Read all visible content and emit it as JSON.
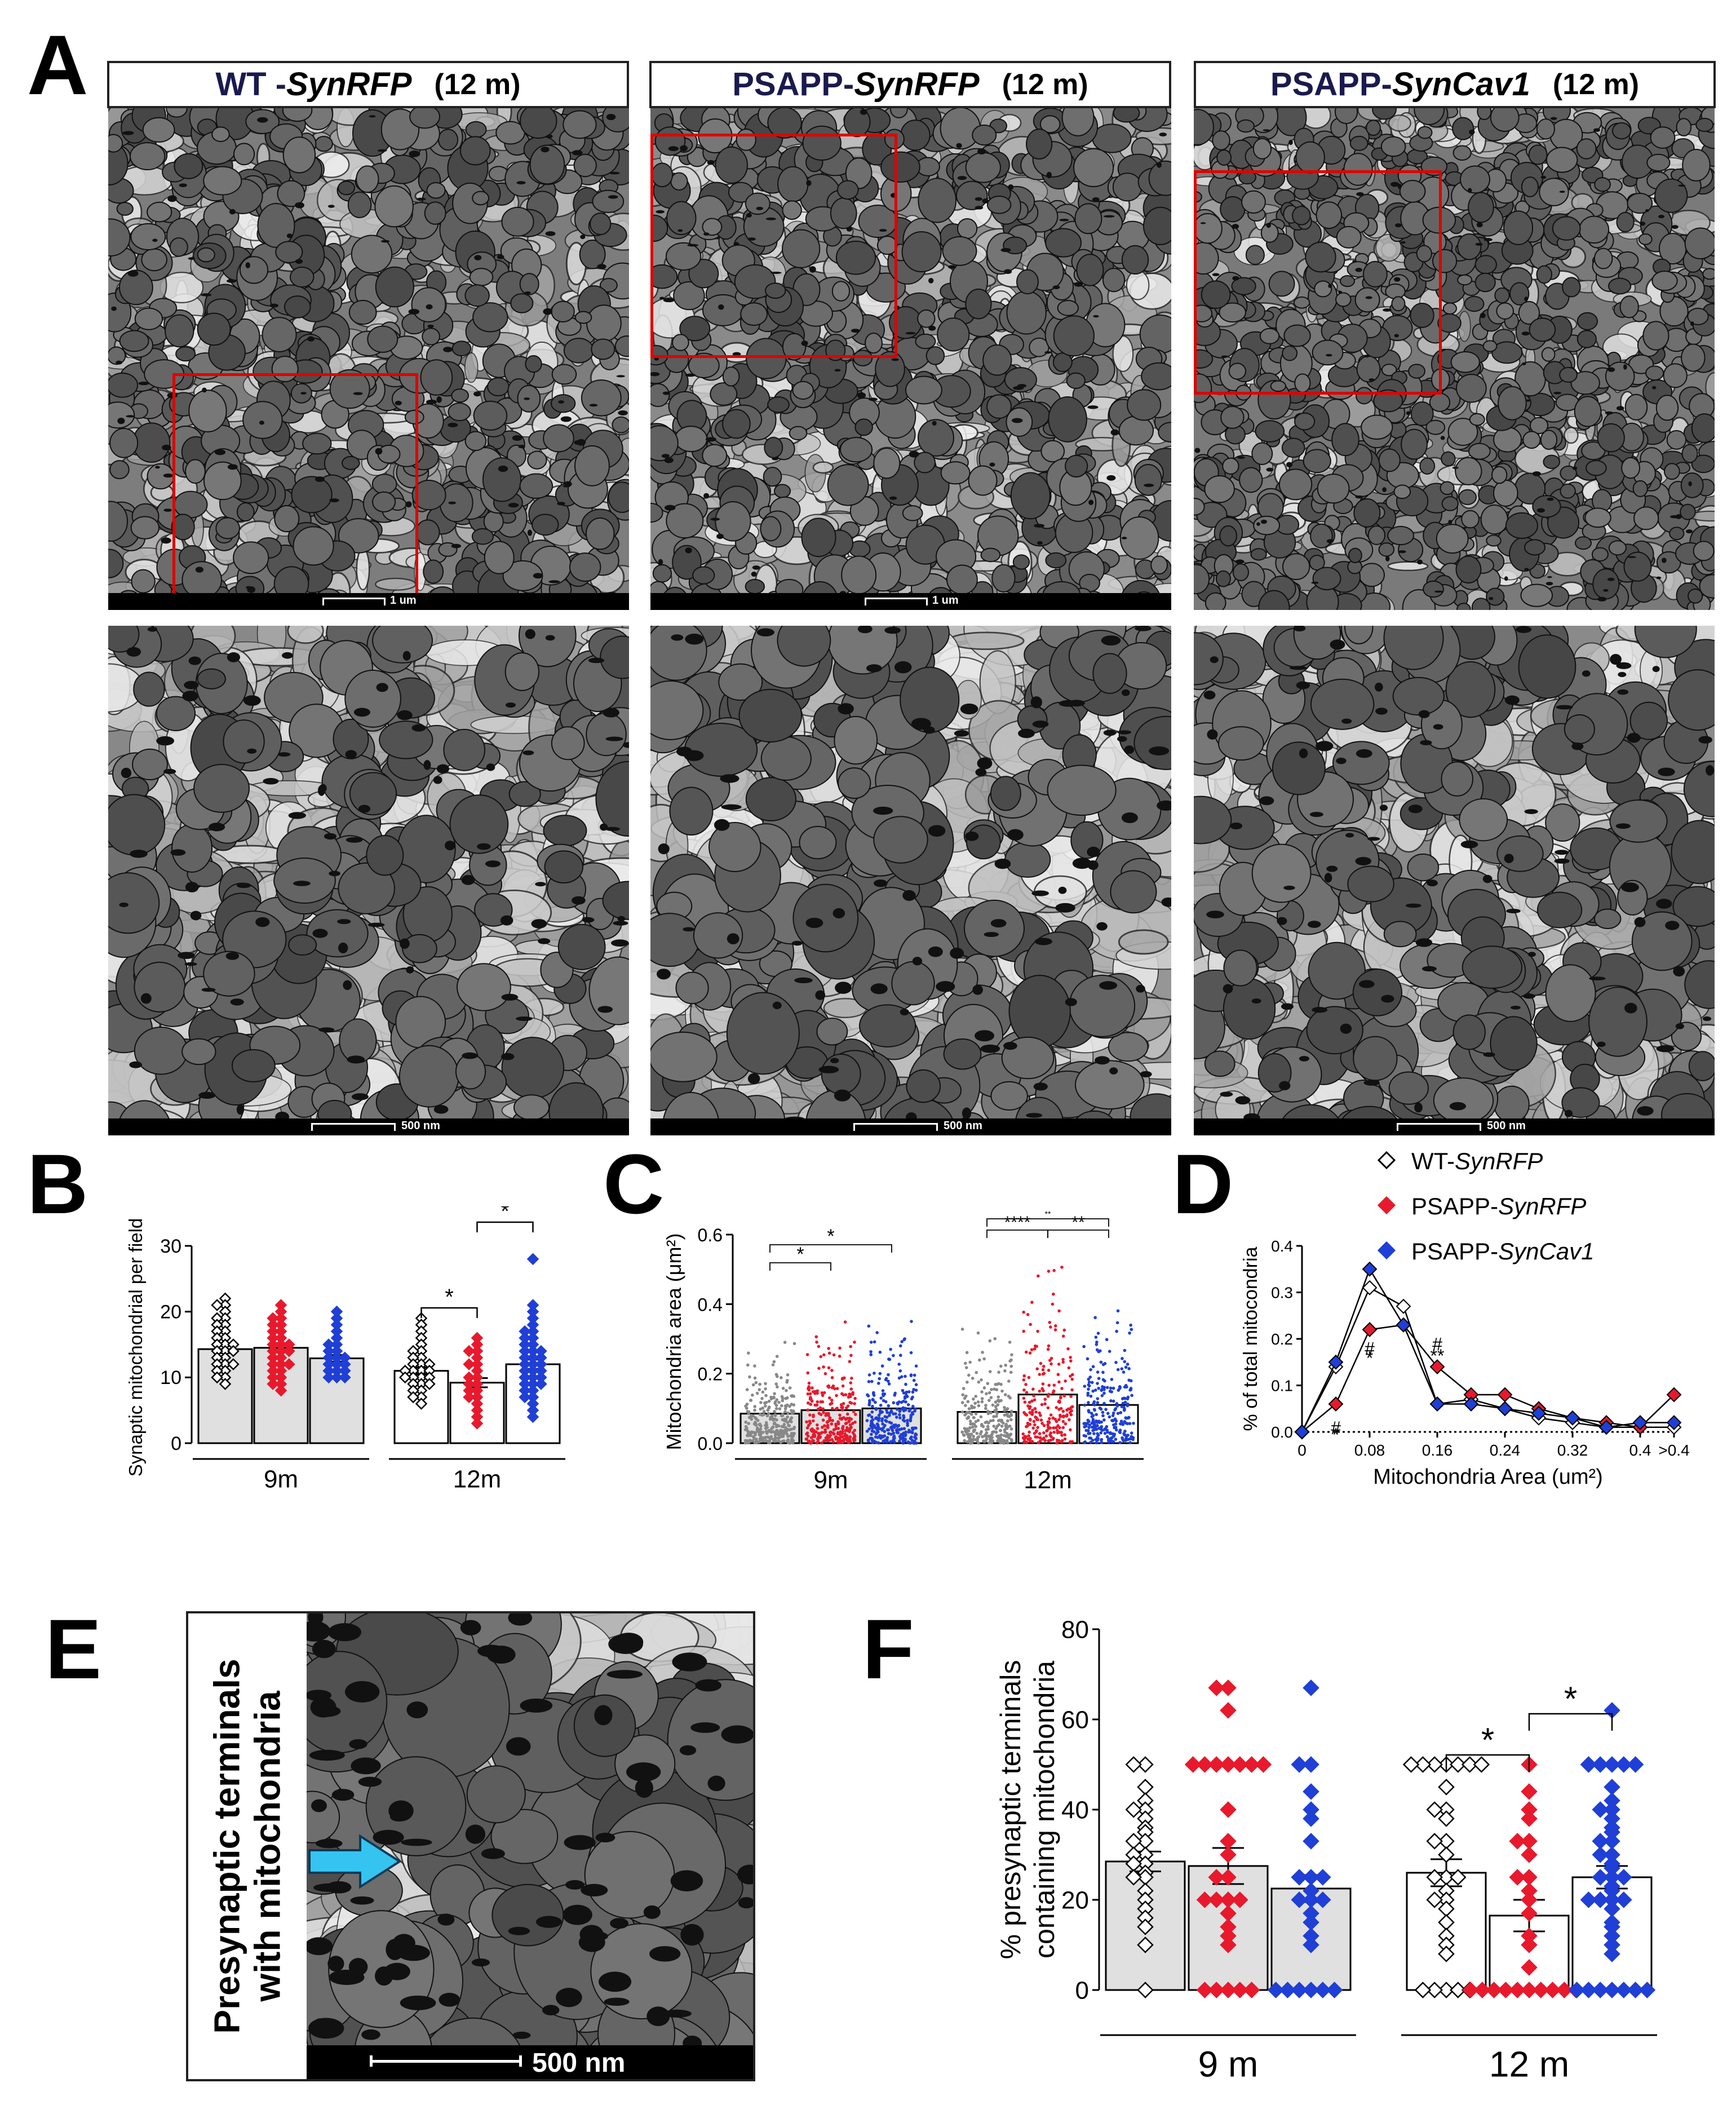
{
  "panel_letters": {
    "a": "A",
    "b": "B",
    "c": "C",
    "d": "D",
    "e": "E",
    "f": "F"
  },
  "panel_a": {
    "headers": [
      {
        "strain": "WT - ",
        "gene": "SynRFP",
        "age": "(12 m)"
      },
      {
        "strain": "PSAPP- ",
        "gene": "SynRFP",
        "age": "(12 m)"
      },
      {
        "strain": "PSAPP- ",
        "gene": "SynCav1",
        "age": "(12 m)"
      }
    ],
    "scale_top": "1 um",
    "scale_bottom": "500 nm"
  },
  "legend": {
    "items": [
      {
        "prefix": "WT-",
        "gene": "SynRFP",
        "color": "#ffffff",
        "stroke": "#000000"
      },
      {
        "prefix": "PSAPP-",
        "gene": "SynRFP",
        "color": "#e8192c",
        "stroke": "#e8192c"
      },
      {
        "prefix": "PSAPP-",
        "gene": "SynCav1",
        "color": "#1f3fd6",
        "stroke": "#1f3fd6"
      }
    ]
  },
  "panel_e": {
    "title_line1": "Presynaptic terminals",
    "title_line2": "with mitochondria",
    "scale": "500 nm",
    "arrow_color": "#35c4f0"
  },
  "chart_data": [
    {
      "id": "B",
      "type": "bar",
      "ylabel": "Synaptic mitochondrial per field",
      "ylim": [
        0,
        30
      ],
      "yticks": [
        "0",
        "10",
        "20",
        "30"
      ],
      "groups": [
        "9m",
        "12m"
      ],
      "series": [
        {
          "name": "WT-SynRFP",
          "group": "9m",
          "mean": 14.3,
          "sem": 0.6,
          "fill": "#e0e0e0",
          "points": [
            22,
            21,
            21,
            20,
            19,
            19,
            18,
            18,
            17,
            17,
            16,
            16,
            15,
            15,
            15,
            14,
            14,
            14,
            13,
            13,
            12,
            12,
            12,
            11,
            11,
            10,
            10,
            9
          ]
        },
        {
          "name": "PSAPP-SynRFP",
          "group": "9m",
          "mean": 14.5,
          "sem": 0.7,
          "fill": "#e0e0e0",
          "points": [
            21,
            20,
            19,
            19,
            18,
            18,
            17,
            17,
            16,
            16,
            15,
            15,
            15,
            14,
            14,
            14,
            13,
            13,
            12,
            12,
            12,
            11,
            11,
            10,
            10,
            9,
            9,
            8
          ]
        },
        {
          "name": "PSAPP-SynCav1",
          "group": "9m",
          "mean": 12.9,
          "sem": 0.5,
          "fill": "#e0e0e0",
          "points": [
            20,
            19,
            18,
            17,
            16,
            15,
            15,
            14,
            14,
            13,
            13,
            13,
            12,
            12,
            12,
            11,
            11,
            11,
            10,
            10,
            10
          ]
        },
        {
          "name": "WT-SynRFP",
          "group": "12m",
          "mean": 11.0,
          "sem": 0.5,
          "fill": "#ffffff",
          "points": [
            19,
            18,
            17,
            16,
            15,
            14,
            14,
            13,
            13,
            12,
            12,
            12,
            11,
            11,
            11,
            11,
            10,
            10,
            10,
            10,
            9,
            9,
            9,
            8,
            8,
            7,
            7,
            6
          ]
        },
        {
          "name": "PSAPP-SynRFP",
          "group": "12m",
          "mean": 9.2,
          "sem": 0.7,
          "fill": "#ffffff",
          "points": [
            16,
            15,
            14,
            14,
            13,
            12,
            12,
            11,
            10,
            10,
            9,
            9,
            8,
            8,
            7,
            7,
            6,
            5,
            4,
            3
          ]
        },
        {
          "name": "PSAPP-SynCav1",
          "group": "12m",
          "mean": 12.0,
          "sem": 0.7,
          "fill": "#ffffff",
          "points": [
            28,
            21,
            20,
            19,
            18,
            17,
            17,
            16,
            16,
            15,
            15,
            14,
            14,
            14,
            13,
            13,
            13,
            12,
            12,
            12,
            11,
            11,
            11,
            10,
            10,
            10,
            9,
            9,
            9,
            8,
            8,
            7,
            7,
            6,
            5,
            4
          ]
        }
      ],
      "significance": [
        {
          "from": 3,
          "to": 4,
          "label": "*"
        },
        {
          "from": 4,
          "to": 5,
          "label": "*"
        }
      ]
    },
    {
      "id": "C",
      "type": "scatter",
      "ylabel": "Mitochondria area (μm²)",
      "ylim": [
        0,
        0.6
      ],
      "yticks": [
        "0.0",
        "0.2",
        "0.4",
        "0.6"
      ],
      "groups": [
        "9m",
        "12m"
      ],
      "series": [
        {
          "name": "WT-SynRFP",
          "group": "9m",
          "mean": 0.085,
          "color": "#888888",
          "fill": "#e0e0e0",
          "n": 300,
          "max": 0.38
        },
        {
          "name": "PSAPP-SynRFP",
          "group": "9m",
          "mean": 0.095,
          "color": "#e8192c",
          "fill": "#e0e0e0",
          "n": 280,
          "max": 0.44
        },
        {
          "name": "PSAPP-SynCav1",
          "group": "9m",
          "mean": 0.1,
          "color": "#1f3fd6",
          "fill": "#e0e0e0",
          "n": 290,
          "max": 0.45
        },
        {
          "name": "WT-SynRFP",
          "group": "12m",
          "mean": 0.09,
          "color": "#888888",
          "fill": "#ffffff",
          "n": 260,
          "max": 0.37
        },
        {
          "name": "PSAPP-SynRFP",
          "group": "12m",
          "mean": 0.14,
          "color": "#e8192c",
          "fill": "#ffffff",
          "n": 220,
          "max": 0.52
        },
        {
          "name": "PSAPP-SynCav1",
          "group": "12m",
          "mean": 0.11,
          "color": "#1f3fd6",
          "fill": "#ffffff",
          "n": 260,
          "max": 0.49
        }
      ],
      "significance": [
        {
          "from": 0,
          "to": 1,
          "label": "*"
        },
        {
          "from": 0,
          "to": 2,
          "label": "*"
        },
        {
          "from": 3,
          "to": 4,
          "label": "****"
        },
        {
          "from": 4,
          "to": 5,
          "label": "**"
        },
        {
          "from": 3,
          "to": 5,
          "label": "**"
        }
      ]
    },
    {
      "id": "D",
      "type": "line",
      "ylabel": "% of total mitocondria",
      "xlabel": "Mitochondria Area (um²)",
      "ylim": [
        0,
        0.4
      ],
      "yticks": [
        "0.0",
        "0.1",
        "0.2",
        "0.3",
        "0.4"
      ],
      "x": [
        0,
        0.04,
        0.08,
        0.12,
        0.16,
        0.2,
        0.24,
        0.28,
        0.32,
        0.36,
        0.4,
        0.44
      ],
      "xticks": [
        {
          "x": 0,
          "label": "0"
        },
        {
          "x": 0.08,
          "label": "0.08"
        },
        {
          "x": 0.16,
          "label": "0.16"
        },
        {
          "x": 0.24,
          "label": "0.24"
        },
        {
          "x": 0.32,
          "label": "0.32"
        },
        {
          "x": 0.4,
          "label": "0.4"
        },
        {
          "x": 0.44,
          "label": ">0.4"
        }
      ],
      "series": [
        {
          "name": "WT-SynRFP",
          "color": "#ffffff",
          "stroke": "#000000",
          "values": [
            0,
            0.14,
            0.31,
            0.27,
            0.06,
            0.07,
            0.05,
            0.03,
            0.02,
            0.01,
            0.01,
            0.01
          ]
        },
        {
          "name": "PSAPP-SynRFP",
          "color": "#e8192c",
          "stroke": "#e8192c",
          "values": [
            0,
            0.06,
            0.22,
            0.23,
            0.14,
            0.08,
            0.08,
            0.05,
            0.03,
            0.02,
            0.01,
            0.08
          ]
        },
        {
          "name": "PSAPP-SynCav1",
          "color": "#1f3fd6",
          "stroke": "#1f3fd6",
          "values": [
            0,
            0.15,
            0.35,
            0.23,
            0.06,
            0.06,
            0.05,
            0.04,
            0.03,
            0.01,
            0.02,
            0.02
          ]
        }
      ],
      "annotations": [
        {
          "x": 0.04,
          "y": 0.01,
          "label": "#"
        },
        {
          "x": 0.04,
          "y": -0.005,
          "label": "*"
        },
        {
          "x": 0.08,
          "y": 0.18,
          "label": "#"
        },
        {
          "x": 0.08,
          "y": 0.16,
          "label": "*"
        },
        {
          "x": 0.16,
          "y": 0.19,
          "label": "#"
        },
        {
          "x": 0.16,
          "y": 0.165,
          "label": "**"
        }
      ]
    },
    {
      "id": "F",
      "type": "bar",
      "ylabel_line1": "% presynaptic terminals",
      "ylabel_line2": "containing mitochondria",
      "ylim": [
        0,
        80
      ],
      "yticks": [
        "0",
        "20",
        "40",
        "60",
        "80"
      ],
      "groups": [
        "9 m",
        "12 m"
      ],
      "series": [
        {
          "name": "WT-SynRFP",
          "group": "9 m",
          "mean": 28.5,
          "sem": 2.2,
          "fill": "#e0e0e0",
          "points": [
            50,
            50,
            45,
            42,
            40,
            40,
            38,
            36,
            35,
            33,
            33,
            30,
            30,
            28,
            28,
            26,
            25,
            25,
            22,
            20,
            18,
            16,
            14,
            10,
            0
          ]
        },
        {
          "name": "PSAPP-SynRFP",
          "group": "9 m",
          "mean": 27.5,
          "sem": 4.0,
          "fill": "#e0e0e0",
          "points": [
            67,
            67,
            62,
            50,
            50,
            50,
            50,
            50,
            50,
            50,
            40,
            33,
            30,
            25,
            25,
            20,
            20,
            20,
            20,
            17,
            14,
            12,
            10,
            0,
            0,
            0,
            0,
            0
          ]
        },
        {
          "name": "PSAPP-SynCav1",
          "group": "9 m",
          "mean": 22.5,
          "sem": 3.0,
          "fill": "#e0e0e0",
          "points": [
            67,
            50,
            50,
            44,
            40,
            38,
            33,
            25,
            25,
            25,
            22,
            20,
            20,
            20,
            17,
            15,
            12,
            10,
            0,
            0,
            0,
            0,
            0,
            0
          ]
        },
        {
          "name": "WT-SynRFP",
          "group": "12 m",
          "mean": 26.0,
          "sem": 3.0,
          "fill": "#ffffff",
          "points": [
            50,
            50,
            50,
            50,
            50,
            50,
            50,
            45,
            40,
            40,
            38,
            33,
            33,
            30,
            25,
            25,
            25,
            22,
            20,
            20,
            18,
            15,
            12,
            10,
            8,
            0,
            0,
            0,
            0,
            0
          ]
        },
        {
          "name": "PSAPP-SynRFP",
          "group": "12 m",
          "mean": 16.5,
          "sem": 3.5,
          "fill": "#ffffff",
          "points": [
            50,
            44,
            40,
            38,
            33,
            33,
            30,
            25,
            25,
            22,
            20,
            17,
            12,
            10,
            5,
            0,
            0,
            0,
            0,
            0,
            0,
            0,
            0,
            0,
            0
          ]
        },
        {
          "name": "PSAPP-SynCav1",
          "group": "12 m",
          "mean": 25.0,
          "sem": 2.5,
          "fill": "#ffffff",
          "points": [
            62,
            50,
            50,
            50,
            50,
            50,
            45,
            42,
            40,
            40,
            38,
            36,
            35,
            33,
            33,
            30,
            30,
            28,
            27,
            25,
            25,
            25,
            23,
            22,
            20,
            20,
            20,
            20,
            18,
            15,
            14,
            12,
            10,
            8,
            0,
            0,
            0,
            0,
            0,
            0,
            0
          ]
        }
      ],
      "significance": [
        {
          "from": 3,
          "to": 4,
          "label": "*"
        },
        {
          "from": 4,
          "to": 5,
          "label": "*"
        }
      ]
    }
  ]
}
